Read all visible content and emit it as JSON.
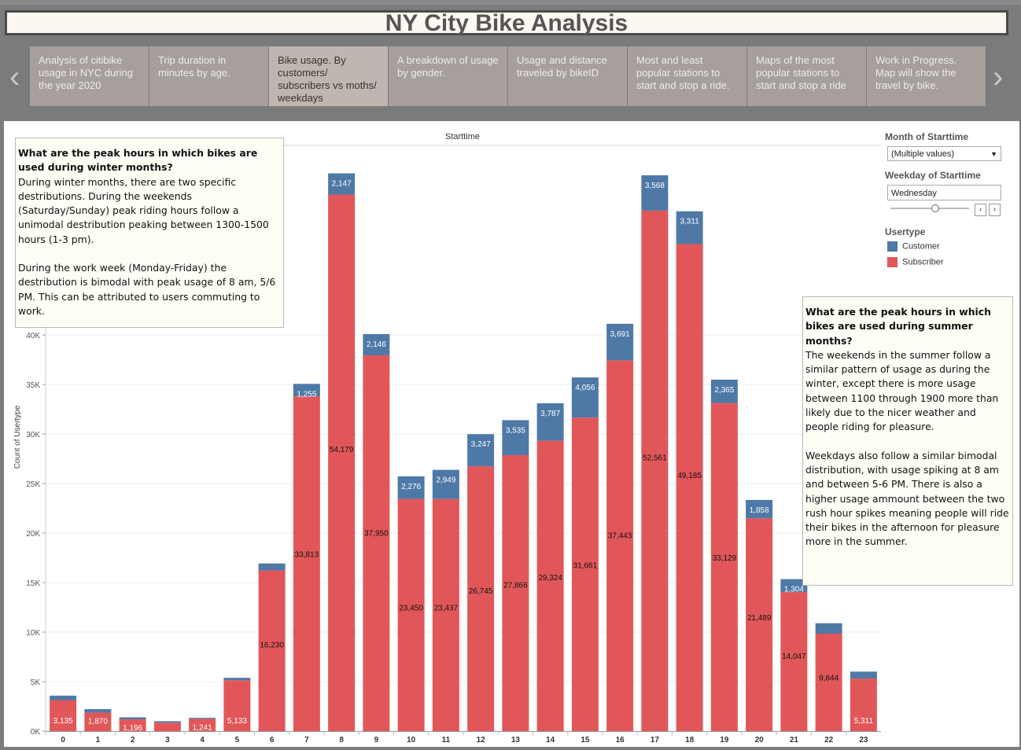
{
  "title": "NY City Bike Analysis",
  "tabs": [
    {
      "label": "Analysis of citibike usage in NYC during the year 2020"
    },
    {
      "label": "Trip duration in minutes by age."
    },
    {
      "label": "Bike usage. By customers/ subscribers vs moths/ weekdays"
    },
    {
      "label": "A breakdown of usage by gender."
    },
    {
      "label": "Usage and distance traveled by bikeID"
    },
    {
      "label": "Most and least popular stations to start and stop a ride."
    },
    {
      "label": "Maps of the most popular stations to start and stop a ride"
    },
    {
      "label": "Work in Progress. Map will show the travel by bike."
    }
  ],
  "active_tab": 2,
  "nav": {
    "prev_icon": "chevron-left-icon",
    "next_icon": "chevron-right-icon"
  },
  "notes": {
    "winter_question": "What are the peak hours in which bikes are used during winter months?",
    "winter_p1": "During winter months, there are two specific destributions. During the weekends (Saturday/Sunday) peak riding hours follow a unimodal destribution peaking between 1300-1500 hours (1-3 pm).",
    "winter_p2": "During the work week (Monday-Friday) the destribution is bimodal with peak usage of 8 am, 5/6 PM. This can be attributed to users commuting to work.",
    "summer_question": "What are the peak hours in which bikes are used during summer months?",
    "summer_p1": "The weekends in the summer follow a similar pattern of usage as during the winter, except there is more usage between 1100 through 1900 more than likely due to the nicer weather and people riding for pleasure.",
    "summer_p2": "Weekdays also follow a similar bimodal distribution, with usage spiking at 8 am and between 5-6 PM. There is also a higher usage ammount between the two rush hour spikes meaning people will ride their bikes in the afternoon for pleasure more in the summer."
  },
  "filters": {
    "month_label": "Month of Starttime",
    "month_value": "(Multiple values)",
    "weekday_label": "Weekday of Starttime",
    "weekday_value": "Wednesday",
    "usertype_label": "Usertype",
    "legend": [
      {
        "name": "Customer",
        "color": "#4e79a7"
      },
      {
        "name": "Subscriber",
        "color": "#e15759"
      }
    ]
  },
  "chart_data": {
    "type": "bar",
    "stacked": true,
    "title": "Starttime",
    "xlabel": "",
    "ylabel": "Count of Usertype",
    "ylim": [
      0,
      57000
    ],
    "yticks": [
      0,
      5000,
      10000,
      15000,
      20000,
      25000,
      30000,
      35000,
      40000
    ],
    "ytick_labels": [
      "0K",
      "5K",
      "10K",
      "15K",
      "20K",
      "25K",
      "30K",
      "35K",
      "40K"
    ],
    "categories": [
      "0",
      "1",
      "2",
      "3",
      "4",
      "5",
      "6",
      "7",
      "8",
      "9",
      "10",
      "11",
      "12",
      "13",
      "14",
      "15",
      "16",
      "17",
      "18",
      "19",
      "20",
      "21",
      "22",
      "23"
    ],
    "series": [
      {
        "name": "Subscriber",
        "color": "#e15759",
        "values": [
          3135,
          1870,
          1196,
          850,
          1241,
          5133,
          16230,
          33813,
          54179,
          37950,
          23450,
          23437,
          26745,
          27866,
          29324,
          31661,
          37443,
          52561,
          49185,
          33129,
          21489,
          14047,
          9844,
          5311
        ],
        "labels": [
          "3,135",
          "1,870",
          "1,196",
          "",
          "1,241",
          "5,133",
          "16,230",
          "33,813",
          "54,179",
          "37,950",
          "23,450",
          "23,437",
          "26,745",
          "27,866",
          "29,324",
          "31,661",
          "37,443",
          "52,561",
          "49,185",
          "33,129",
          "21,489",
          "14,047",
          "9,844",
          "5,311"
        ]
      },
      {
        "name": "Customer",
        "color": "#4e79a7",
        "values": [
          450,
          350,
          200,
          150,
          100,
          250,
          700,
          1255,
          2147,
          2146,
          2276,
          2949,
          3247,
          3535,
          3787,
          4056,
          3691,
          3568,
          3311,
          2365,
          1858,
          1304,
          1050,
          700
        ],
        "labels": [
          "",
          "",
          "",
          "",
          "",
          "",
          "",
          "1,255",
          "2,147",
          "2,146",
          "2,276",
          "2,949",
          "3,247",
          "3,535",
          "3,787",
          "4,056",
          "3,691",
          "3,568",
          "3,311",
          "2,365",
          "1,858",
          "1,304",
          "",
          ""
        ]
      }
    ]
  }
}
